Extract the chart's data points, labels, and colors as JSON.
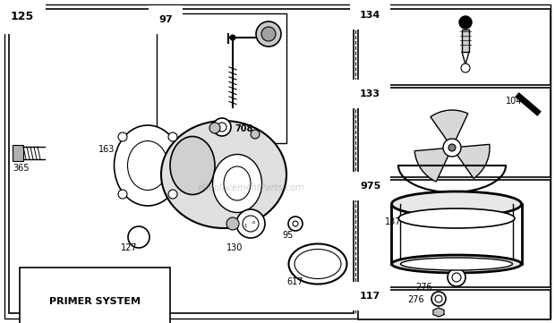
{
  "bg_color": "#ffffff",
  "watermark": "eReplacementParts.com",
  "fig_w": 6.2,
  "fig_h": 3.61,
  "dpi": 100
}
